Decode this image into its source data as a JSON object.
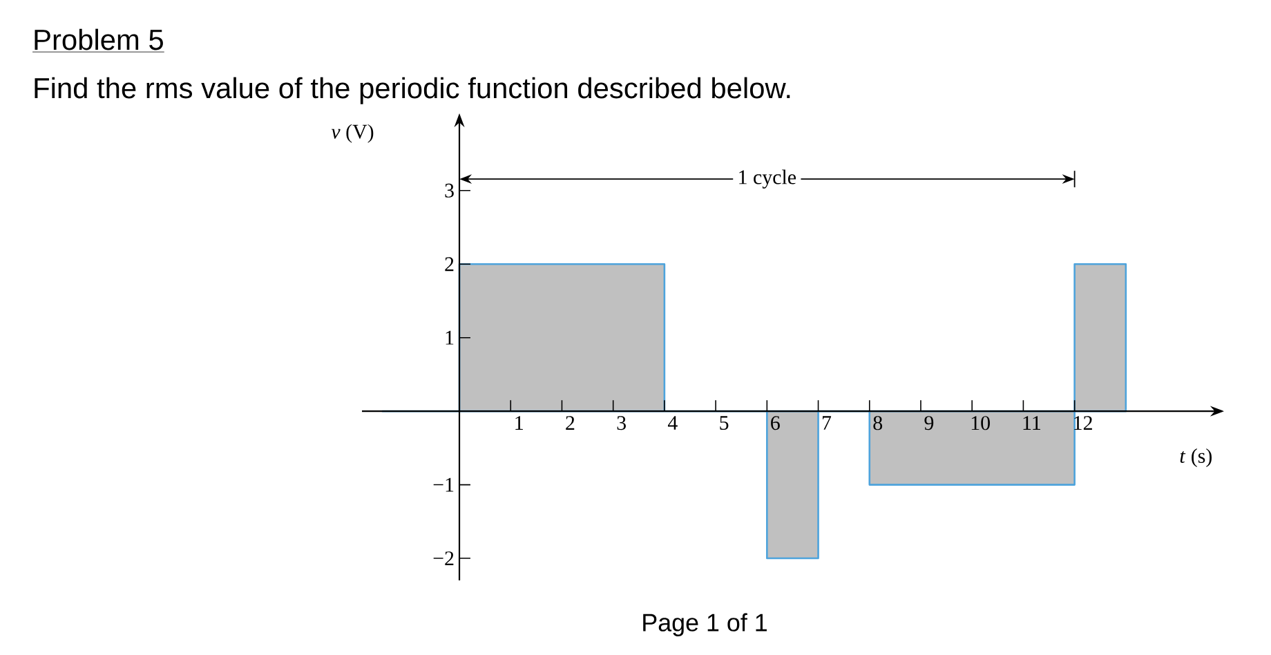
{
  "chart_data": {
    "type": "area",
    "title": "Problem 5",
    "subtitle": "Find the rms value of the periodic function described below.",
    "xlabel": "*t* (s)",
    "ylabel": "*v* (V)",
    "x": [
      -1.5,
      0,
      0,
      4,
      4,
      6,
      6,
      7,
      7,
      8,
      8,
      12,
      12,
      13
    ],
    "series": [
      {
        "color": "#c0c0c0",
        "values": [
          0,
          0,
          2,
          2,
          0,
          0,
          -2,
          -2,
          0,
          0,
          -1,
          -1,
          2,
          2
        ]
      }
    ],
    "xlim": [
      -1.9,
      14.7
    ],
    "ylim": [
      -2.3,
      3.9
    ],
    "xticks": [
      1,
      2,
      3,
      4,
      5,
      6,
      7,
      8,
      9,
      10,
      11,
      12
    ],
    "yticks": [
      {
        "value": -2,
        "label": "−2"
      },
      {
        "value": -1,
        "label": "−1"
      },
      1,
      2,
      3
    ],
    "annotations": [
      "1 cycle",
      "Page 1 of 1"
    ]
  }
}
